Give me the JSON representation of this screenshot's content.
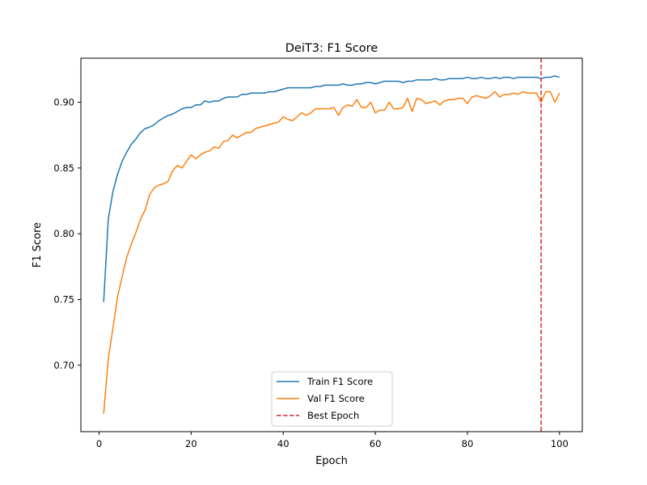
{
  "chart_data": {
    "type": "line",
    "title": "DeiT3: F1 Score",
    "xlabel": "Epoch",
    "ylabel": "F1 Score",
    "xlim": [
      -3.95,
      104.95
    ],
    "ylim": [
      0.6495,
      0.9335
    ],
    "xticks": [
      0,
      20,
      40,
      60,
      80,
      100
    ],
    "yticks": [
      0.7,
      0.75,
      0.8,
      0.85,
      0.9
    ],
    "xtick_labels": [
      "0",
      "20",
      "40",
      "60",
      "80",
      "100"
    ],
    "ytick_labels": [
      "0.70",
      "0.75",
      "0.80",
      "0.85",
      "0.90"
    ],
    "grid": false,
    "legend_position": "bottom-center",
    "series": [
      {
        "name": "Train F1 Score",
        "color": "#1f77b4",
        "x": [
          1,
          2,
          3,
          4,
          5,
          6,
          7,
          8,
          9,
          10,
          11,
          12,
          13,
          14,
          15,
          16,
          17,
          18,
          19,
          20,
          21,
          22,
          23,
          24,
          25,
          26,
          27,
          28,
          29,
          30,
          31,
          32,
          33,
          34,
          35,
          36,
          37,
          38,
          39,
          40,
          41,
          42,
          43,
          44,
          45,
          46,
          47,
          48,
          49,
          50,
          51,
          52,
          53,
          54,
          55,
          56,
          57,
          58,
          59,
          60,
          61,
          62,
          63,
          64,
          65,
          66,
          67,
          68,
          69,
          70,
          71,
          72,
          73,
          74,
          75,
          76,
          77,
          78,
          79,
          80,
          81,
          82,
          83,
          84,
          85,
          86,
          87,
          88,
          89,
          90,
          91,
          92,
          93,
          94,
          95,
          96,
          97,
          98,
          99,
          100
        ],
        "values": [
          0.748,
          0.811,
          0.832,
          0.845,
          0.855,
          0.862,
          0.868,
          0.872,
          0.877,
          0.88,
          0.881,
          0.883,
          0.886,
          0.888,
          0.89,
          0.891,
          0.893,
          0.895,
          0.896,
          0.896,
          0.898,
          0.898,
          0.901,
          0.9,
          0.901,
          0.901,
          0.903,
          0.904,
          0.904,
          0.904,
          0.906,
          0.906,
          0.907,
          0.907,
          0.907,
          0.907,
          0.908,
          0.908,
          0.909,
          0.91,
          0.911,
          0.911,
          0.911,
          0.911,
          0.911,
          0.911,
          0.912,
          0.912,
          0.913,
          0.913,
          0.913,
          0.913,
          0.914,
          0.913,
          0.913,
          0.914,
          0.914,
          0.915,
          0.915,
          0.914,
          0.915,
          0.916,
          0.916,
          0.916,
          0.916,
          0.915,
          0.916,
          0.916,
          0.917,
          0.917,
          0.917,
          0.917,
          0.918,
          0.917,
          0.917,
          0.918,
          0.918,
          0.918,
          0.918,
          0.919,
          0.918,
          0.918,
          0.919,
          0.918,
          0.918,
          0.919,
          0.918,
          0.919,
          0.919,
          0.918,
          0.919,
          0.919,
          0.919,
          0.919,
          0.919,
          0.918,
          0.919,
          0.919,
          0.92,
          0.919
        ]
      },
      {
        "name": "Val F1 Score",
        "color": "#ff7f0e",
        "x": [
          1,
          2,
          3,
          4,
          5,
          6,
          7,
          8,
          9,
          10,
          11,
          12,
          13,
          14,
          15,
          16,
          17,
          18,
          19,
          20,
          21,
          22,
          23,
          24,
          25,
          26,
          27,
          28,
          29,
          30,
          31,
          32,
          33,
          34,
          35,
          36,
          37,
          38,
          39,
          40,
          41,
          42,
          43,
          44,
          45,
          46,
          47,
          48,
          49,
          50,
          51,
          52,
          53,
          54,
          55,
          56,
          57,
          58,
          59,
          60,
          61,
          62,
          63,
          64,
          65,
          66,
          67,
          68,
          69,
          70,
          71,
          72,
          73,
          74,
          75,
          76,
          77,
          78,
          79,
          80,
          81,
          82,
          83,
          84,
          85,
          86,
          87,
          88,
          89,
          90,
          91,
          92,
          93,
          94,
          95,
          96,
          97,
          98,
          99,
          100
        ],
        "values": [
          0.663,
          0.705,
          0.728,
          0.752,
          0.767,
          0.782,
          0.792,
          0.801,
          0.811,
          0.818,
          0.83,
          0.835,
          0.837,
          0.838,
          0.84,
          0.848,
          0.852,
          0.85,
          0.855,
          0.86,
          0.857,
          0.86,
          0.862,
          0.863,
          0.866,
          0.865,
          0.87,
          0.871,
          0.875,
          0.873,
          0.875,
          0.877,
          0.877,
          0.88,
          0.881,
          0.882,
          0.883,
          0.884,
          0.885,
          0.889,
          0.887,
          0.886,
          0.889,
          0.892,
          0.89,
          0.892,
          0.895,
          0.895,
          0.895,
          0.895,
          0.896,
          0.89,
          0.896,
          0.898,
          0.897,
          0.902,
          0.896,
          0.896,
          0.9,
          0.892,
          0.894,
          0.894,
          0.9,
          0.895,
          0.895,
          0.896,
          0.903,
          0.893,
          0.903,
          0.902,
          0.899,
          0.9,
          0.901,
          0.898,
          0.901,
          0.902,
          0.902,
          0.903,
          0.903,
          0.899,
          0.904,
          0.905,
          0.904,
          0.903,
          0.905,
          0.908,
          0.904,
          0.906,
          0.906,
          0.907,
          0.906,
          0.908,
          0.907,
          0.907,
          0.907,
          0.9,
          0.908,
          0.908,
          0.9,
          0.907
        ]
      }
    ],
    "annotations": [
      {
        "name": "Best Epoch",
        "type": "vline",
        "x": 96,
        "color": "#d62728"
      }
    ]
  }
}
